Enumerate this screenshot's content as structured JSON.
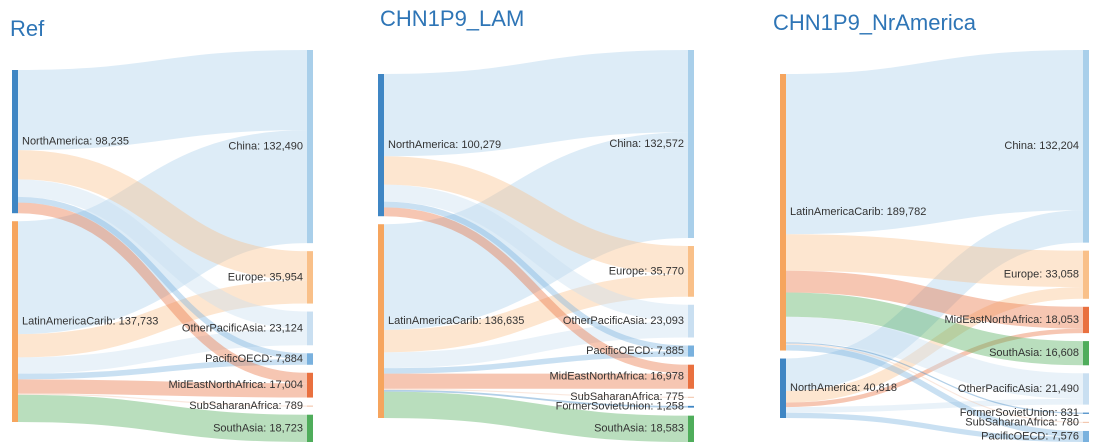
{
  "chart_data": [
    {
      "type": "sankey",
      "title": "Ref",
      "nodes": [
        {
          "label": "NorthAmerica: 98,235",
          "value": 98235,
          "color": "#3f86c4"
        },
        {
          "label": "LatinAmericaCarib: 137,733",
          "value": 137733,
          "color": "#f6a55e"
        },
        {
          "label": "China: 132,490",
          "value": 132490,
          "color": "#a9cfea"
        },
        {
          "label": "Europe: 35,954",
          "value": 35954,
          "color": "#f9c089"
        },
        {
          "label": "OtherPacificAsia: 23,124",
          "value": 23124,
          "color": "#c9dff1"
        },
        {
          "label": "PacificOECD: 7,884",
          "value": 7884,
          "color": "#79b1de"
        },
        {
          "label": "MidEastNorthAfrica: 17,004",
          "value": 17004,
          "color": "#e9703f"
        },
        {
          "label": "SubSaharanAfrica: 789",
          "value": 789,
          "color": "#f3c6ad"
        },
        {
          "label": "SouthAsia: 18,723",
          "value": 18723,
          "color": "#4fad5b"
        }
      ],
      "links": [
        {
          "source": 0,
          "target": 2,
          "value": 55000
        },
        {
          "source": 0,
          "target": 3,
          "value": 20000
        },
        {
          "source": 0,
          "target": 4,
          "value": 12000
        },
        {
          "source": 0,
          "target": 5,
          "value": 4000
        },
        {
          "source": 0,
          "target": 6,
          "value": 7235
        },
        {
          "source": 1,
          "target": 2,
          "value": 77490
        },
        {
          "source": 1,
          "target": 3,
          "value": 15954
        },
        {
          "source": 1,
          "target": 4,
          "value": 11124
        },
        {
          "source": 1,
          "target": 5,
          "value": 3884
        },
        {
          "source": 1,
          "target": 6,
          "value": 9769
        },
        {
          "source": 1,
          "target": 7,
          "value": 789
        },
        {
          "source": 1,
          "target": 8,
          "value": 18723
        }
      ]
    },
    {
      "type": "sankey",
      "title": "CHN1P9_LAM",
      "nodes": [
        {
          "label": "NorthAmerica: 100,279",
          "value": 100279,
          "color": "#3f86c4"
        },
        {
          "label": "LatinAmericaCarib: 136,635",
          "value": 136635,
          "color": "#f6a55e"
        },
        {
          "label": "China: 132,572",
          "value": 132572,
          "color": "#a9cfea"
        },
        {
          "label": "Europe: 35,770",
          "value": 35770,
          "color": "#f9c089"
        },
        {
          "label": "OtherPacificAsia: 23,093",
          "value": 23093,
          "color": "#c9dff1"
        },
        {
          "label": "PacificOECD: 7,885",
          "value": 7885,
          "color": "#79b1de"
        },
        {
          "label": "MidEastNorthAfrica: 16,978",
          "value": 16978,
          "color": "#e9703f"
        },
        {
          "label": "SubSaharanAfrica: 775",
          "value": 775,
          "color": "#f3c6ad"
        },
        {
          "label": "FormerSovietUnion: 1,258",
          "value": 1258,
          "color": "#3f86c4"
        },
        {
          "label": "SouthAsia: 18,583",
          "value": 18583,
          "color": "#4fad5b"
        }
      ],
      "links": [
        {
          "source": 0,
          "target": 2,
          "value": 58000
        },
        {
          "source": 0,
          "target": 3,
          "value": 20000
        },
        {
          "source": 0,
          "target": 4,
          "value": 12000
        },
        {
          "source": 0,
          "target": 5,
          "value": 4000
        },
        {
          "source": 0,
          "target": 6,
          "value": 6279
        },
        {
          "source": 1,
          "target": 2,
          "value": 74572
        },
        {
          "source": 1,
          "target": 3,
          "value": 15770
        },
        {
          "source": 1,
          "target": 4,
          "value": 11093
        },
        {
          "source": 1,
          "target": 5,
          "value": 3885
        },
        {
          "source": 1,
          "target": 6,
          "value": 10699
        },
        {
          "source": 1,
          "target": 7,
          "value": 775
        },
        {
          "source": 1,
          "target": 8,
          "value": 1258
        },
        {
          "source": 1,
          "target": 9,
          "value": 18583
        }
      ]
    },
    {
      "type": "sankey",
      "title": "CHN1P9_NrAmerica",
      "nodes": [
        {
          "label": "LatinAmericaCarib: 189,782",
          "value": 189782,
          "color": "#f6a55e"
        },
        {
          "label": "NorthAmerica: 40,818",
          "value": 40818,
          "color": "#3f86c4"
        },
        {
          "label": "China: 132,204",
          "value": 132204,
          "color": "#a9cfea"
        },
        {
          "label": "Europe: 33,058",
          "value": 33058,
          "color": "#f9c089"
        },
        {
          "label": "MidEastNorthAfrica: 18,053",
          "value": 18053,
          "color": "#e9703f"
        },
        {
          "label": "SouthAsia: 16,608",
          "value": 16608,
          "color": "#4fad5b"
        },
        {
          "label": "OtherPacificAsia: 21,490",
          "value": 21490,
          "color": "#c9dff1"
        },
        {
          "label": "FormerSovietUnion: 831",
          "value": 831,
          "color": "#3f86c4"
        },
        {
          "label": "SubSaharanAfrica: 780",
          "value": 780,
          "color": "#f3c6ad"
        },
        {
          "label": "PacificOECD: 7,576",
          "value": 7576,
          "color": "#79b1de"
        }
      ],
      "links": [
        {
          "source": 0,
          "target": 2,
          "value": 110000
        },
        {
          "source": 0,
          "target": 3,
          "value": 25000
        },
        {
          "source": 0,
          "target": 4,
          "value": 15000
        },
        {
          "source": 0,
          "target": 5,
          "value": 16608
        },
        {
          "source": 0,
          "target": 6,
          "value": 17563
        },
        {
          "source": 0,
          "target": 7,
          "value": 831
        },
        {
          "source": 0,
          "target": 8,
          "value": 780
        },
        {
          "source": 0,
          "target": 9,
          "value": 4000
        },
        {
          "source": 1,
          "target": 2,
          "value": 22204
        },
        {
          "source": 1,
          "target": 3,
          "value": 8058
        },
        {
          "source": 1,
          "target": 4,
          "value": 3053
        },
        {
          "source": 1,
          "target": 6,
          "value": 3927
        },
        {
          "source": 1,
          "target": 9,
          "value": 3576
        }
      ]
    }
  ]
}
